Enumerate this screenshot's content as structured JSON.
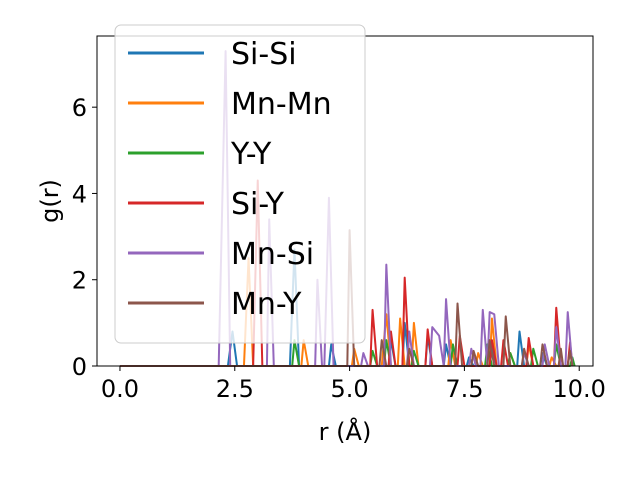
{
  "chart_data": {
    "type": "line",
    "title": "",
    "xlabel": "r (Å)",
    "ylabel": "g(r)",
    "xlim": [
      -0.5,
      10.3
    ],
    "ylim": [
      0,
      7.65
    ],
    "xticks": [
      0.0,
      2.5,
      5.0,
      7.5,
      10.0
    ],
    "xtick_labels": [
      "0.0",
      "2.5",
      "5.0",
      "7.5",
      "10.0"
    ],
    "yticks": [
      0,
      2,
      4,
      6
    ],
    "ytick_labels": [
      "0",
      "2",
      "4",
      "6"
    ],
    "grid": false,
    "legend_position": "top-left",
    "series": [
      {
        "name": "Si-Si",
        "color": "#1f77b4",
        "points": [
          [
            0,
            0
          ],
          [
            2.35,
            0
          ],
          [
            2.45,
            0.8
          ],
          [
            2.55,
            0
          ],
          [
            3.7,
            0
          ],
          [
            3.8,
            2.7
          ],
          [
            3.9,
            0
          ],
          [
            4.55,
            0
          ],
          [
            4.6,
            0.5
          ],
          [
            4.7,
            0
          ],
          [
            5.85,
            0
          ],
          [
            5.9,
            0.6
          ],
          [
            6.0,
            0
          ],
          [
            6.15,
            0
          ],
          [
            6.2,
            1.0
          ],
          [
            6.3,
            0
          ],
          [
            6.65,
            0
          ],
          [
            6.7,
            0.7
          ],
          [
            6.8,
            0
          ],
          [
            7.05,
            0
          ],
          [
            7.1,
            0.5
          ],
          [
            7.2,
            0
          ],
          [
            7.55,
            0
          ],
          [
            7.6,
            0.2
          ],
          [
            7.7,
            0
          ],
          [
            8.05,
            0
          ],
          [
            8.1,
            0.4
          ],
          [
            8.2,
            0
          ],
          [
            8.65,
            0
          ],
          [
            8.7,
            0.8
          ],
          [
            8.8,
            0
          ],
          [
            9.15,
            0
          ],
          [
            9.2,
            0.3
          ],
          [
            9.3,
            0
          ],
          [
            9.75,
            0
          ],
          [
            9.8,
            0.4
          ],
          [
            9.85,
            0
          ]
        ]
      },
      {
        "name": "Mn-Mn",
        "color": "#ff7f0e",
        "points": [
          [
            0,
            0
          ],
          [
            2.7,
            0
          ],
          [
            2.8,
            2.5
          ],
          [
            2.9,
            0
          ],
          [
            3.95,
            0
          ],
          [
            4.0,
            0.6
          ],
          [
            4.1,
            0
          ],
          [
            5.05,
            0
          ],
          [
            5.1,
            0.4
          ],
          [
            5.2,
            0
          ],
          [
            5.7,
            0
          ],
          [
            5.8,
            1.2
          ],
          [
            5.9,
            0
          ],
          [
            6.05,
            0
          ],
          [
            6.1,
            1.1
          ],
          [
            6.2,
            0
          ],
          [
            6.35,
            0
          ],
          [
            6.4,
            1.0
          ],
          [
            6.5,
            0
          ],
          [
            7.15,
            0
          ],
          [
            7.2,
            0.6
          ],
          [
            7.3,
            0
          ],
          [
            7.75,
            0
          ],
          [
            7.8,
            0.3
          ],
          [
            7.9,
            0
          ],
          [
            8.05,
            0
          ],
          [
            8.1,
            1.1
          ],
          [
            8.2,
            0
          ],
          [
            8.45,
            0
          ],
          [
            8.5,
            0.3
          ],
          [
            8.6,
            0
          ],
          [
            8.85,
            0
          ],
          [
            8.9,
            0.5
          ],
          [
            9.0,
            0
          ],
          [
            9.35,
            0
          ],
          [
            9.4,
            0.2
          ],
          [
            9.5,
            0
          ],
          [
            9.75,
            0
          ],
          [
            9.8,
            0.4
          ],
          [
            9.85,
            0
          ]
        ]
      },
      {
        "name": "Y-Y",
        "color": "#2ca02c",
        "points": [
          [
            0,
            0
          ],
          [
            3.75,
            0
          ],
          [
            3.8,
            0.6
          ],
          [
            3.9,
            0
          ],
          [
            5.45,
            0
          ],
          [
            5.5,
            0.35
          ],
          [
            5.6,
            0
          ],
          [
            5.75,
            0
          ],
          [
            5.8,
            0.6
          ],
          [
            5.9,
            0
          ],
          [
            6.35,
            0
          ],
          [
            6.4,
            0.35
          ],
          [
            6.5,
            0
          ],
          [
            7.2,
            0
          ],
          [
            7.25,
            0.5
          ],
          [
            7.35,
            0
          ],
          [
            7.95,
            0
          ],
          [
            8.0,
            0.5
          ],
          [
            8.1,
            0
          ],
          [
            8.45,
            0
          ],
          [
            8.5,
            0.3
          ],
          [
            8.6,
            0
          ],
          [
            8.95,
            0
          ],
          [
            9.0,
            0.4
          ],
          [
            9.1,
            0
          ],
          [
            9.45,
            0
          ],
          [
            9.5,
            0.5
          ],
          [
            9.6,
            0
          ],
          [
            9.8,
            0
          ],
          [
            9.85,
            0.2
          ],
          [
            9.9,
            0
          ]
        ]
      },
      {
        "name": "Si-Y",
        "color": "#d62728",
        "points": [
          [
            0,
            0
          ],
          [
            2.9,
            0
          ],
          [
            3.0,
            4.3
          ],
          [
            3.1,
            0
          ],
          [
            5.45,
            0
          ],
          [
            5.5,
            1.3
          ],
          [
            5.6,
            0
          ],
          [
            5.85,
            0
          ],
          [
            5.9,
            0.8
          ],
          [
            6.0,
            0
          ],
          [
            6.15,
            0
          ],
          [
            6.2,
            2.05
          ],
          [
            6.3,
            0
          ],
          [
            6.65,
            0
          ],
          [
            6.7,
            0.85
          ],
          [
            6.8,
            0
          ],
          [
            7.35,
            0
          ],
          [
            7.4,
            0.7
          ],
          [
            7.5,
            0
          ],
          [
            8.05,
            0
          ],
          [
            8.1,
            0.6
          ],
          [
            8.2,
            0
          ],
          [
            8.3,
            0
          ],
          [
            8.35,
            0.6
          ],
          [
            8.45,
            0
          ],
          [
            8.85,
            0
          ],
          [
            8.9,
            0.65
          ],
          [
            9.0,
            0
          ],
          [
            9.45,
            0
          ],
          [
            9.5,
            1.35
          ],
          [
            9.6,
            0
          ],
          [
            9.75,
            0
          ],
          [
            9.8,
            0.55
          ],
          [
            9.85,
            0
          ]
        ]
      },
      {
        "name": "Mn-Si",
        "color": "#9467bd",
        "points": [
          [
            0,
            0
          ],
          [
            2.15,
            0
          ],
          [
            2.3,
            7.3
          ],
          [
            2.4,
            0
          ],
          [
            3.2,
            0
          ],
          [
            3.25,
            3.4
          ],
          [
            3.35,
            0
          ],
          [
            4.25,
            0
          ],
          [
            4.3,
            2.0
          ],
          [
            4.4,
            0
          ],
          [
            4.45,
            0
          ],
          [
            4.55,
            3.9
          ],
          [
            4.65,
            0
          ],
          [
            5.25,
            0
          ],
          [
            5.3,
            0.3
          ],
          [
            5.4,
            0
          ],
          [
            5.75,
            0
          ],
          [
            5.8,
            2.35
          ],
          [
            5.9,
            0
          ],
          [
            6.25,
            0
          ],
          [
            6.3,
            0.8
          ],
          [
            6.4,
            0
          ],
          [
            6.75,
            0
          ],
          [
            6.8,
            0.9
          ],
          [
            6.95,
            0.7
          ],
          [
            7.05,
            0
          ],
          [
            7.1,
            1.55
          ],
          [
            7.2,
            0
          ],
          [
            7.6,
            0
          ],
          [
            7.65,
            0.4
          ],
          [
            7.75,
            0
          ],
          [
            7.85,
            0
          ],
          [
            7.9,
            1.3
          ],
          [
            8.0,
            0
          ],
          [
            8.05,
            1.25
          ],
          [
            8.15,
            1.2
          ],
          [
            8.25,
            0
          ],
          [
            8.75,
            0
          ],
          [
            8.8,
            0.3
          ],
          [
            8.9,
            0
          ],
          [
            9.2,
            0
          ],
          [
            9.25,
            0.5
          ],
          [
            9.35,
            0
          ],
          [
            9.45,
            0
          ],
          [
            9.5,
            0.9
          ],
          [
            9.6,
            0
          ],
          [
            9.7,
            0
          ],
          [
            9.75,
            1.25
          ],
          [
            9.85,
            0
          ]
        ]
      },
      {
        "name": "Mn-Y",
        "color": "#8c564b",
        "points": [
          [
            0,
            0
          ],
          [
            4.95,
            0
          ],
          [
            5.0,
            3.15
          ],
          [
            5.1,
            0
          ],
          [
            5.65,
            0
          ],
          [
            5.7,
            0.6
          ],
          [
            5.8,
            0
          ],
          [
            6.25,
            0
          ],
          [
            6.3,
            0.4
          ],
          [
            6.4,
            0
          ],
          [
            7.3,
            0
          ],
          [
            7.35,
            1.45
          ],
          [
            7.45,
            0
          ],
          [
            7.65,
            0
          ],
          [
            7.7,
            0.35
          ],
          [
            7.8,
            0
          ],
          [
            8.0,
            0
          ],
          [
            8.05,
            0.6
          ],
          [
            8.15,
            0
          ],
          [
            8.35,
            0
          ],
          [
            8.4,
            1.15
          ],
          [
            8.5,
            0
          ],
          [
            8.75,
            0
          ],
          [
            8.8,
            0.4
          ],
          [
            8.9,
            0
          ],
          [
            9.15,
            0
          ],
          [
            9.2,
            0.5
          ],
          [
            9.3,
            0
          ],
          [
            9.55,
            0
          ],
          [
            9.6,
            0.4
          ],
          [
            9.65,
            0
          ],
          [
            9.75,
            0
          ],
          [
            9.8,
            0.35
          ],
          [
            9.85,
            0
          ]
        ]
      }
    ]
  }
}
